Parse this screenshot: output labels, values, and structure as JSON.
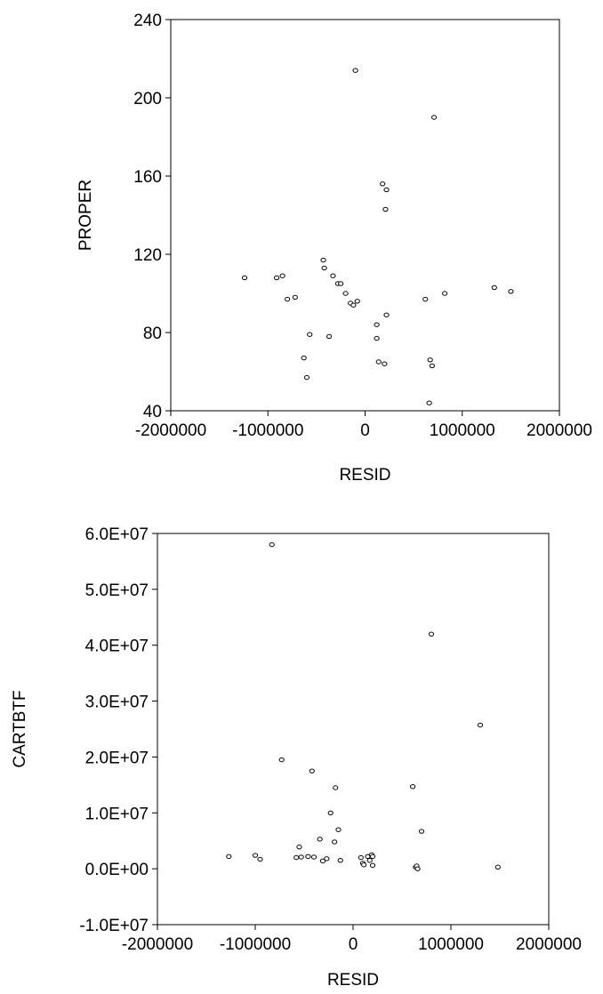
{
  "chart_data": [
    {
      "type": "scatter",
      "xlabel": "RESID",
      "ylabel": "PROPER",
      "xlim": [
        -2000000,
        2000000
      ],
      "ylim": [
        40,
        240
      ],
      "x_ticks": [
        -2000000,
        -1000000,
        0,
        1000000,
        2000000
      ],
      "y_ticks": [
        40,
        80,
        120,
        160,
        200,
        240
      ],
      "x_tick_labels": [
        "-2000000",
        "-1000000",
        "0",
        "1000000",
        "2000000"
      ],
      "y_tick_labels": [
        "40",
        "80",
        "120",
        "160",
        "200",
        "240"
      ],
      "grid": false,
      "points": [
        [
          -1240000,
          108
        ],
        [
          -910000,
          108
        ],
        [
          -850000,
          109
        ],
        [
          -800000,
          97
        ],
        [
          -720000,
          98
        ],
        [
          -630000,
          67
        ],
        [
          -600000,
          57
        ],
        [
          -570000,
          79
        ],
        [
          -430000,
          117
        ],
        [
          -420000,
          113
        ],
        [
          -370000,
          78
        ],
        [
          -330000,
          109
        ],
        [
          -280000,
          105
        ],
        [
          -250000,
          105
        ],
        [
          -200000,
          100
        ],
        [
          -150000,
          95
        ],
        [
          -120000,
          94
        ],
        [
          -100000,
          214
        ],
        [
          -80000,
          96
        ],
        [
          120000,
          84
        ],
        [
          120000,
          77
        ],
        [
          140000,
          65
        ],
        [
          180000,
          156
        ],
        [
          200000,
          64
        ],
        [
          210000,
          143
        ],
        [
          220000,
          153
        ],
        [
          220000,
          89
        ],
        [
          620000,
          97
        ],
        [
          660000,
          44
        ],
        [
          670000,
          66
        ],
        [
          690000,
          63
        ],
        [
          710000,
          190
        ],
        [
          820000,
          100
        ],
        [
          1330000,
          103
        ],
        [
          1500000,
          101
        ]
      ]
    },
    {
      "type": "scatter",
      "xlabel": "RESID",
      "ylabel": "CARTBTF",
      "xlim": [
        -2000000,
        2000000
      ],
      "ylim": [
        -10000000,
        60000000
      ],
      "x_ticks": [
        -2000000,
        -1000000,
        0,
        1000000,
        2000000
      ],
      "y_ticks": [
        -10000000,
        0,
        10000000,
        20000000,
        30000000,
        40000000,
        50000000,
        60000000
      ],
      "x_tick_labels": [
        "-2000000",
        "-1000000",
        "0",
        "1000000",
        "2000000"
      ],
      "y_tick_labels": [
        "-1.0E+07",
        "0.0E+00",
        "1.0E+07",
        "2.0E+07",
        "3.0E+07",
        "4.0E+07",
        "5.0E+07",
        "6.0E+07"
      ],
      "grid": false,
      "points": [
        [
          -1270000,
          2200000
        ],
        [
          -1000000,
          2400000
        ],
        [
          -950000,
          1700000
        ],
        [
          -830000,
          58000000
        ],
        [
          -730000,
          19500000
        ],
        [
          -580000,
          2000000
        ],
        [
          -550000,
          3900000
        ],
        [
          -530000,
          2100000
        ],
        [
          -460000,
          2200000
        ],
        [
          -420000,
          17500000
        ],
        [
          -400000,
          2100000
        ],
        [
          -340000,
          5300000
        ],
        [
          -310000,
          1400000
        ],
        [
          -270000,
          1800000
        ],
        [
          -230000,
          10000000
        ],
        [
          -190000,
          4800000
        ],
        [
          -180000,
          14500000
        ],
        [
          -150000,
          7000000
        ],
        [
          -130000,
          1500000
        ],
        [
          80000,
          2000000
        ],
        [
          100000,
          1000000
        ],
        [
          110000,
          700000
        ],
        [
          150000,
          2200000
        ],
        [
          170000,
          1500000
        ],
        [
          190000,
          2500000
        ],
        [
          200000,
          600000
        ],
        [
          200000,
          2200000
        ],
        [
          610000,
          14700000
        ],
        [
          640000,
          300000
        ],
        [
          650000,
          500000
        ],
        [
          660000,
          0
        ],
        [
          700000,
          6700000
        ],
        [
          800000,
          42000000
        ],
        [
          1300000,
          25700000
        ],
        [
          1480000,
          300000
        ]
      ]
    }
  ]
}
